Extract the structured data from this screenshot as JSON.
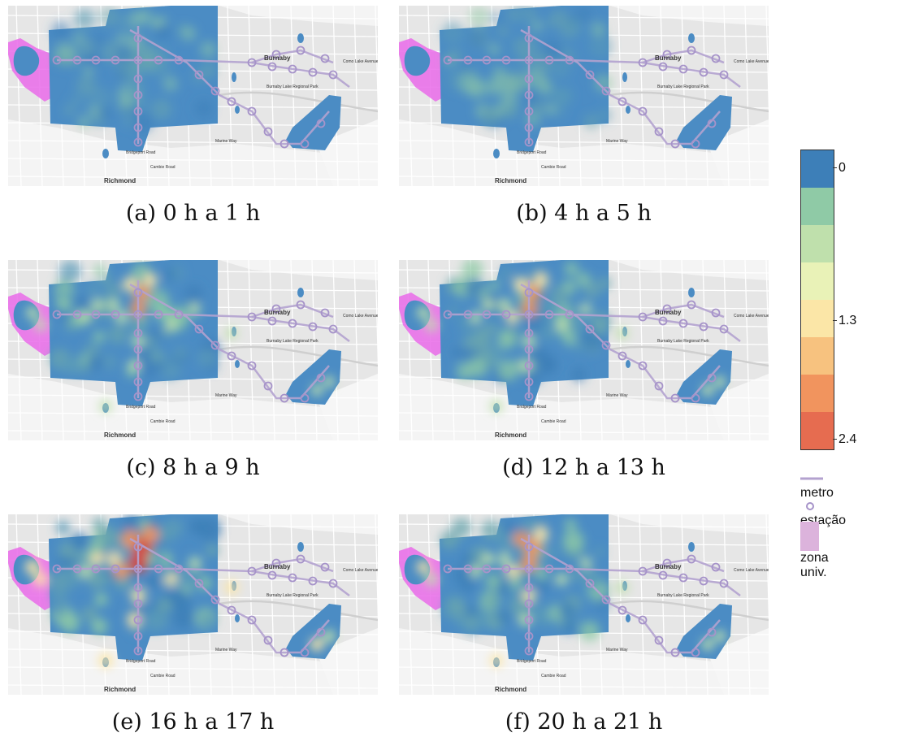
{
  "panels": [
    {
      "id": "a",
      "caption": "(a) 0 h a 1 h",
      "intensity": 0.05
    },
    {
      "id": "b",
      "caption": "(b) 4 h a 5 h",
      "intensity": 0.0
    },
    {
      "id": "c",
      "caption": "(c) 8 h a 9 h",
      "intensity": 0.55
    },
    {
      "id": "d",
      "caption": "(d) 12 h a 13 h",
      "intensity": 0.6
    },
    {
      "id": "e",
      "caption": "(e) 16 h a 17 h",
      "intensity": 0.85
    },
    {
      "id": "f",
      "caption": "(f) 20 h a 21 h",
      "intensity": 0.65
    }
  ],
  "map_labels": {
    "burnaby": "Burnaby",
    "richmond": "Richmond",
    "como_lake": "Como Lake Avenue",
    "lake_park": "Burnaby Lake Regional Park",
    "marine_way": "Marine Way",
    "bridgeport": "Bridgeport Road",
    "cambie": "Cambie Road"
  },
  "legend": {
    "colors": [
      "#3d7fb8",
      "#6aa6ae",
      "#8fcaa6",
      "#bfe0ac",
      "#e9f2b7",
      "#fbe6a7",
      "#f7c27f",
      "#f1945e",
      "#e66c50",
      "#d9433c"
    ],
    "tick_top": "0",
    "tick_mid": "1.3",
    "tick_bottom": "2.4",
    "metro_label": "metro",
    "station_label": "estação",
    "zone_label": "zona univ.",
    "metro_color": "#b3a2cf",
    "zone_color": "#dcb3dc"
  }
}
